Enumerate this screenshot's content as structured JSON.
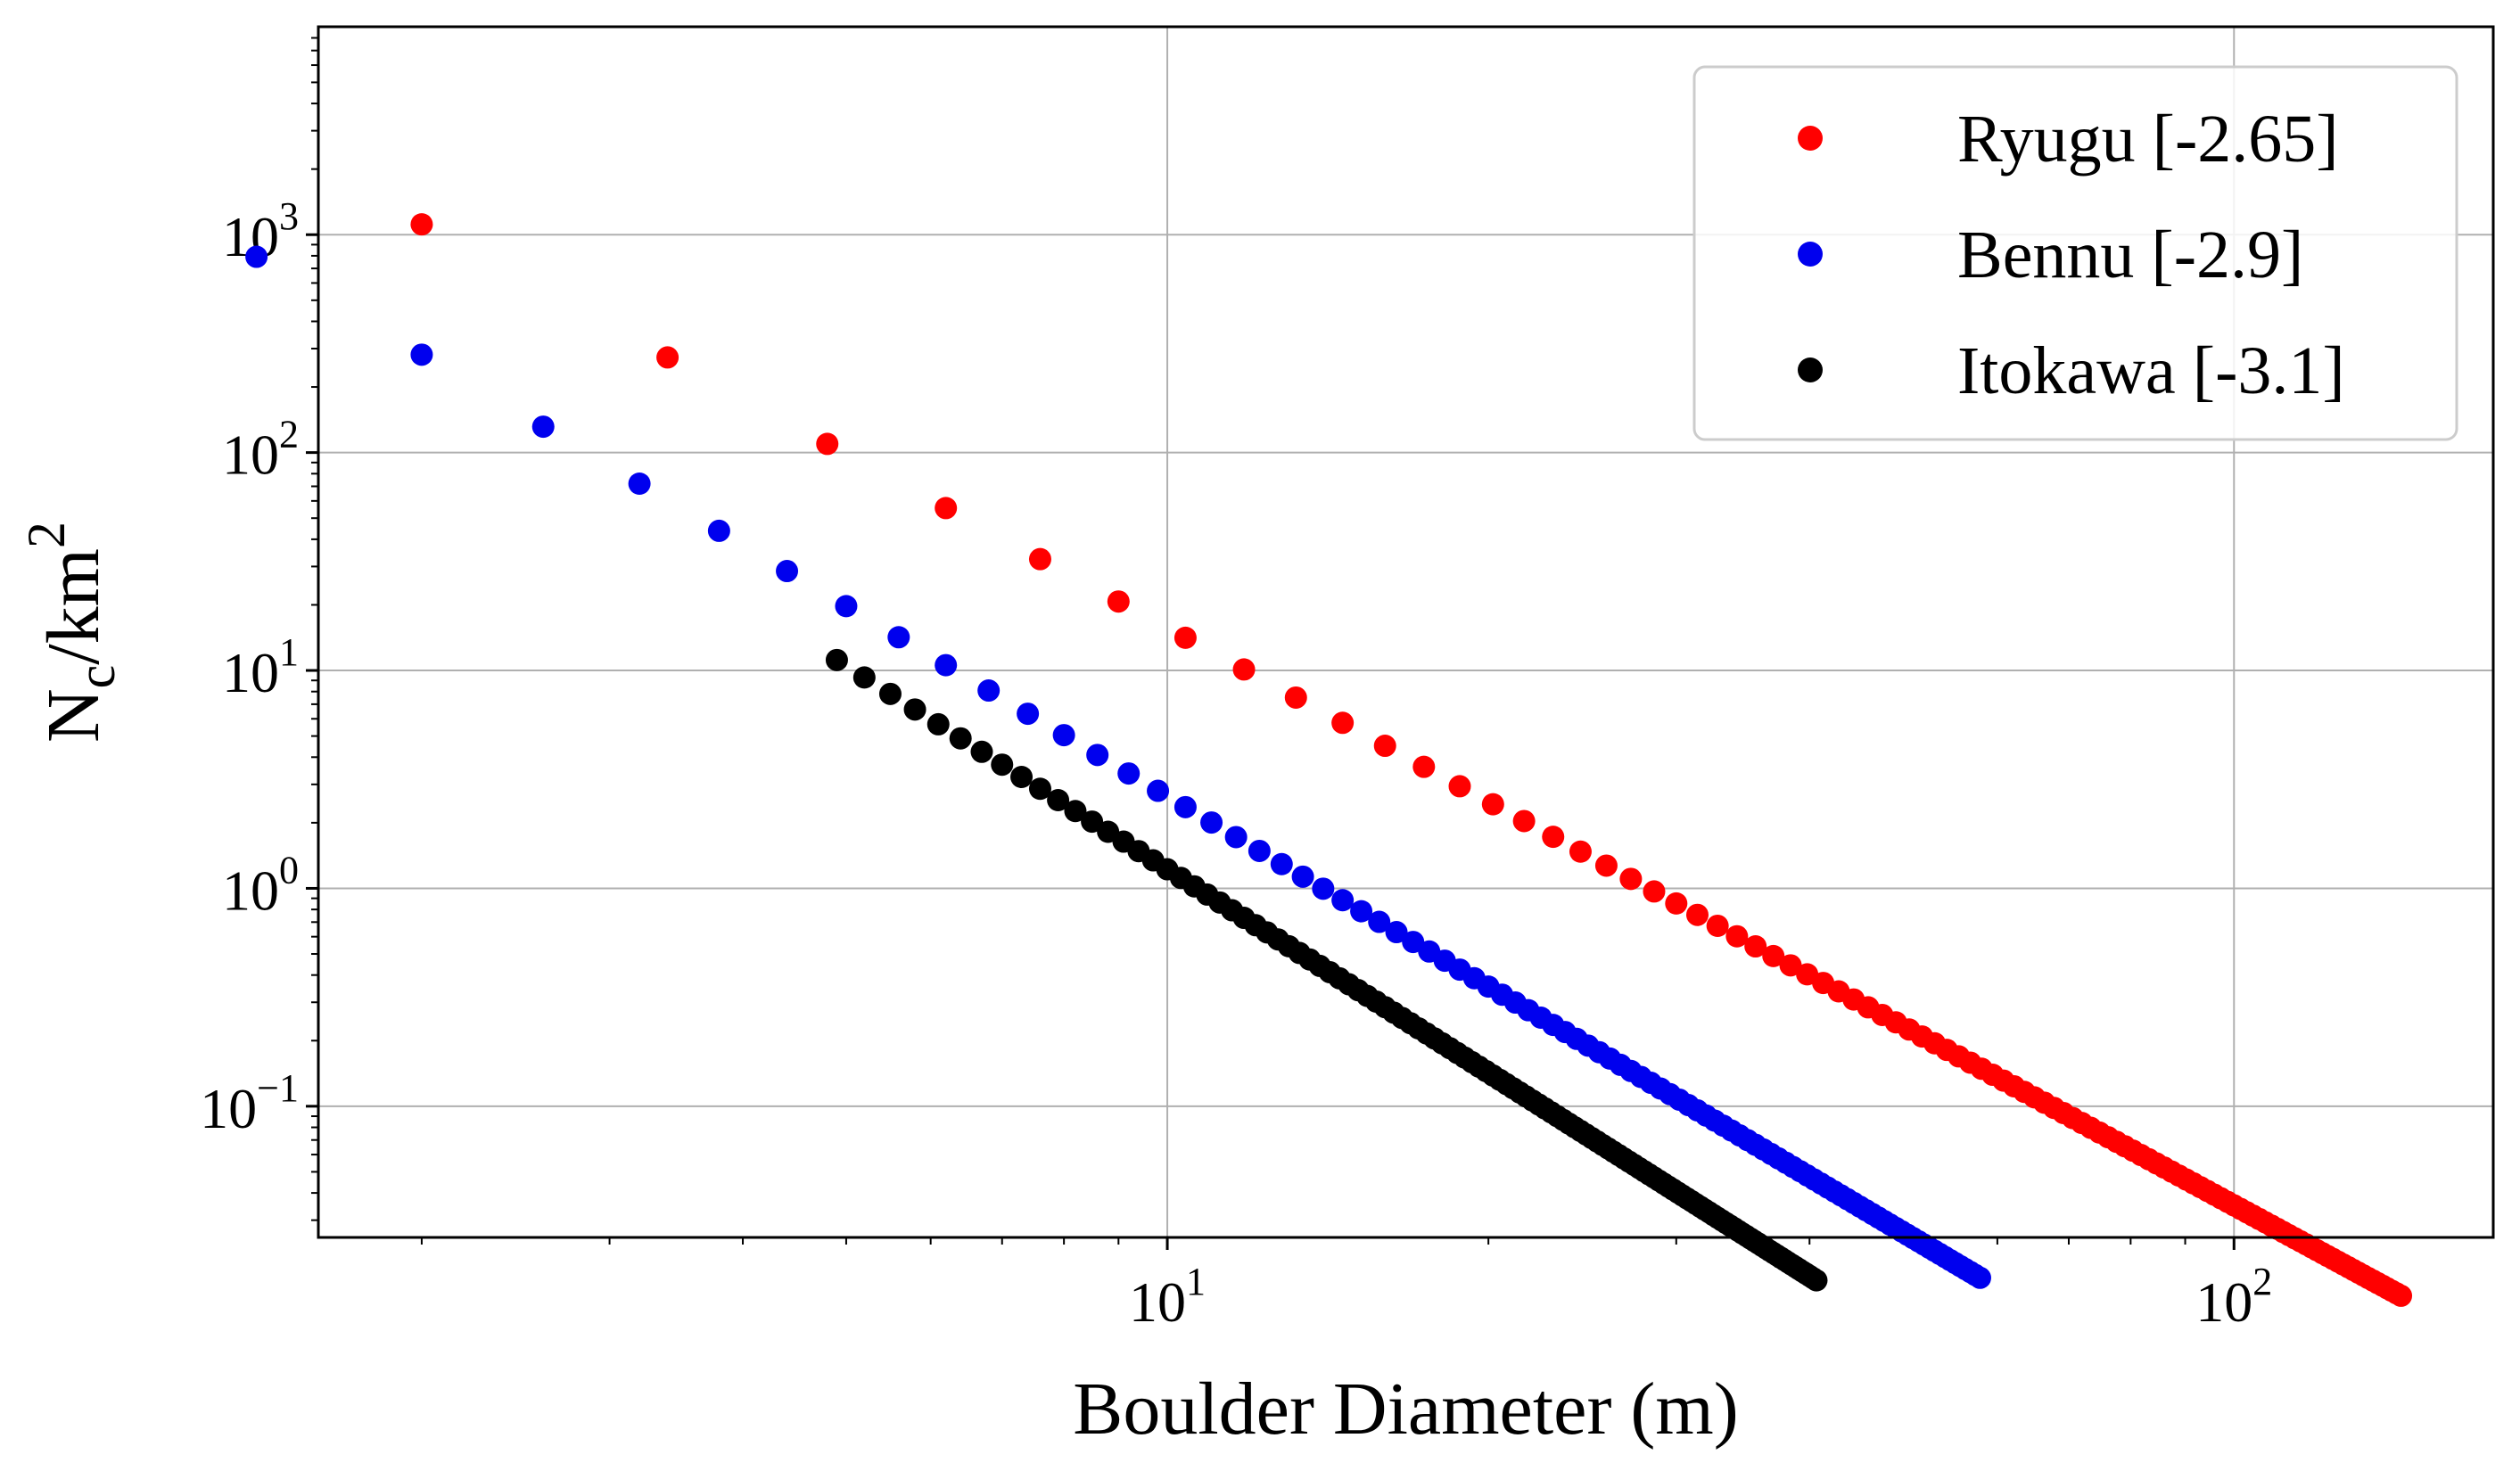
{
  "chart_data": {
    "type": "scatter",
    "title": "",
    "xlabel": "Boulder Diameter (m)",
    "ylabel": {
      "base": "N",
      "sub": "c",
      "mid": "/km",
      "sup": "2"
    },
    "x_scale": "log",
    "y_scale": "log",
    "xlim": [
      1.6,
      175
    ],
    "ylim": [
      0.025,
      9000
    ],
    "grid": true,
    "legend_position": "top-right",
    "x_ticks": [
      {
        "value": 10,
        "base": "10",
        "exp": "1"
      },
      {
        "value": 100,
        "base": "10",
        "exp": "2"
      }
    ],
    "y_ticks": [
      {
        "value": 0.1,
        "base": "10",
        "exp": "−1"
      },
      {
        "value": 1,
        "base": "10",
        "exp": "0"
      },
      {
        "value": 10,
        "base": "10",
        "exp": "1"
      },
      {
        "value": 100,
        "base": "10",
        "exp": "2"
      },
      {
        "value": 1000,
        "base": "10",
        "exp": "3"
      }
    ],
    "series": [
      {
        "name": "Ryugu [-2.65]",
        "color": "#ff0000",
        "c": 7000,
        "exponent": -2.65,
        "d_start": 2.0,
        "d_end": 144,
        "d_step": 1.4
      },
      {
        "name": "Bennu [-2.9]",
        "color": "#0000ee",
        "c": 2100,
        "exponent": -2.9,
        "d_start": 1.4,
        "d_end": 58,
        "d_step": 0.6
      },
      {
        "name": "Itokawa [-3.1]",
        "color": "#000000",
        "c": 1540,
        "exponent": -3.1,
        "d_start": 4.9,
        "d_end": 40.7,
        "d_step": 0.3
      }
    ]
  }
}
